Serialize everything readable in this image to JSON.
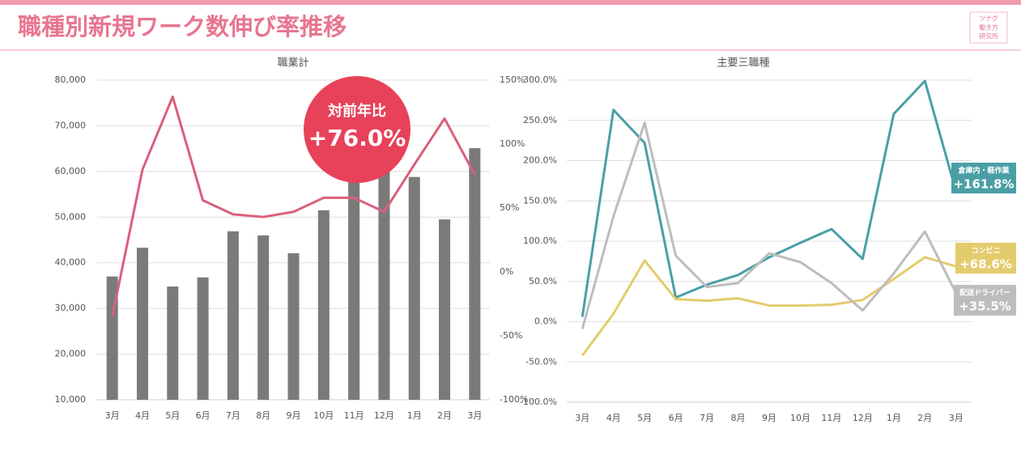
{
  "header": {
    "title": "職種別新規ワーク数伸び率推移",
    "logo": [
      "ツナグ",
      "働き方",
      "研究所"
    ]
  },
  "chart_data": [
    {
      "type": "combo",
      "title": "職業計",
      "categories": [
        "3月",
        "4月",
        "5月",
        "6月",
        "7月",
        "8月",
        "9月",
        "10月",
        "11月",
        "12月",
        "1月",
        "2月",
        "3月"
      ],
      "series": [
        {
          "type": "bar",
          "color": "#7a7a7a",
          "values": [
            37000,
            43300,
            34800,
            36800,
            46900,
            46000,
            42100,
            51500,
            59000,
            61000,
            58800,
            49500,
            65100
          ]
        },
        {
          "type": "line",
          "axis": "y2",
          "color": "#d9607a",
          "values": [
            -35,
            80,
            137,
            56,
            45,
            43,
            47,
            58,
            58,
            47,
            84,
            120,
            76
          ]
        }
      ],
      "ylim": [
        10000,
        80000
      ],
      "yticks": [
        {
          "value": 10000,
          "label": "10,000"
        },
        {
          "value": 20000,
          "label": "20,000"
        },
        {
          "value": 30000,
          "label": "30,000"
        },
        {
          "value": 40000,
          "label": "40,000"
        },
        {
          "value": 50000,
          "label": "50,000"
        },
        {
          "value": 60000,
          "label": "60,000"
        },
        {
          "value": 70000,
          "label": "70,000"
        },
        {
          "value": 80000,
          "label": "80,000"
        }
      ],
      "y2lim": [
        -100,
        150
      ],
      "y2ticks": [
        {
          "value": -100,
          "label": "-100%"
        },
        {
          "value": -50,
          "label": "-50%"
        },
        {
          "value": 0,
          "label": "0%"
        },
        {
          "value": 50,
          "label": "50%"
        },
        {
          "value": 100,
          "label": "100%"
        },
        {
          "value": 150,
          "label": "150%"
        }
      ],
      "grid": true,
      "annotation": {
        "label": "対前年比",
        "text": "+76.0%"
      }
    },
    {
      "type": "line",
      "title": "主要三職種",
      "categories": [
        "3月",
        "4月",
        "5月",
        "6月",
        "7月",
        "8月",
        "9月",
        "10月",
        "11月",
        "12月",
        "1月",
        "2月",
        "3月"
      ],
      "series": [
        {
          "name": "倉庫内・軽作業",
          "color": "#4a9fa6",
          "end_label": "+161.8%",
          "values": [
            6,
            263,
            222,
            30,
            46,
            58,
            80,
            98,
            115,
            78,
            258,
            299,
            161.8
          ]
        },
        {
          "name": "コンビニ",
          "color": "#e3cc6e",
          "end_label": "+68.6%",
          "values": [
            -42,
            10,
            76,
            28,
            26,
            29,
            20,
            20,
            21,
            27,
            53,
            80,
            68.6
          ]
        },
        {
          "name": "配送ドライバー",
          "color": "#bdbdbd",
          "end_label": "+35.5%",
          "values": [
            -9,
            131,
            247,
            82,
            43,
            48,
            85,
            74,
            48,
            14,
            60,
            112,
            35.5
          ]
        }
      ],
      "ylim": [
        -100,
        300
      ],
      "yticks": [
        {
          "value": -100,
          "label": "-100.0%"
        },
        {
          "value": -50,
          "label": "-50.0%"
        },
        {
          "value": 0,
          "label": "0.0%"
        },
        {
          "value": 50,
          "label": "50.0%"
        },
        {
          "value": 100,
          "label": "100.0%"
        },
        {
          "value": 150,
          "label": "150.0%"
        },
        {
          "value": 200,
          "label": "200.0%"
        },
        {
          "value": 250,
          "label": "250.0%"
        },
        {
          "value": 300,
          "label": "300.0%"
        }
      ],
      "grid": true
    }
  ]
}
